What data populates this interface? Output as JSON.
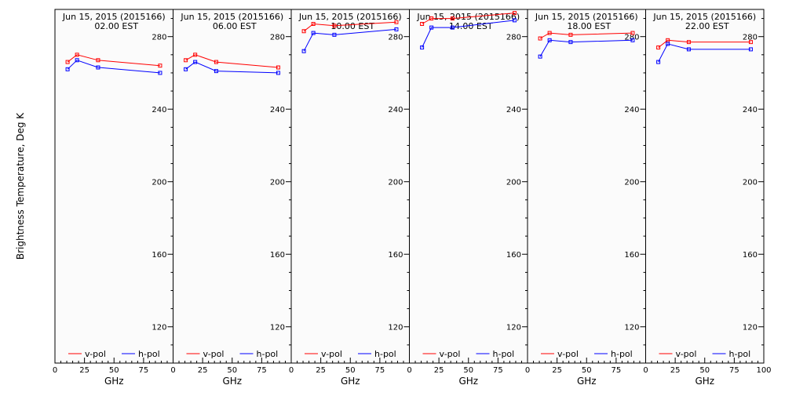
{
  "chart_data": {
    "type": "line",
    "ylabel": "Brightness Temperature, Deg K",
    "xlabel": "GHz",
    "ylim": [
      100,
      295
    ],
    "yticks": [
      120,
      160,
      200,
      240,
      280
    ],
    "xlim": [
      0,
      100
    ],
    "xticks": [
      0,
      25,
      50,
      75,
      100
    ],
    "x": [
      10.7,
      18.7,
      36.5,
      89.0
    ],
    "colors": {
      "v-pol": "#ff0000",
      "h-pol": "#0000ff"
    },
    "legend": [
      "v-pol",
      "h-pol"
    ],
    "panels": [
      {
        "title": "Jun 15, 2015 (2015166)",
        "subtitle": "02.00 EST",
        "series": [
          {
            "name": "v-pol",
            "values": [
              266,
              270,
              267,
              264
            ]
          },
          {
            "name": "h-pol",
            "values": [
              262,
              267,
              263,
              260
            ]
          }
        ]
      },
      {
        "title": "Jun 15, 2015 (2015166)",
        "subtitle": "06.00 EST",
        "series": [
          {
            "name": "v-pol",
            "values": [
              267,
              270,
              266,
              263
            ]
          },
          {
            "name": "h-pol",
            "values": [
              262,
              266,
              261,
              260
            ]
          }
        ]
      },
      {
        "title": "Jun 15, 2015 (2015166)",
        "subtitle": "10.00 EST",
        "series": [
          {
            "name": "v-pol",
            "values": [
              283,
              287,
              286,
              288
            ]
          },
          {
            "name": "h-pol",
            "values": [
              272,
              282,
              281,
              284
            ]
          }
        ]
      },
      {
        "title": "Jun 15, 2015 (2015166)",
        "subtitle": "14.00 EST",
        "series": [
          {
            "name": "v-pol",
            "values": [
              287,
              290,
              290,
              293
            ]
          },
          {
            "name": "h-pol",
            "values": [
              274,
              285,
              285,
              289
            ]
          }
        ]
      },
      {
        "title": "Jun 15, 2015 (2015166)",
        "subtitle": "18.00 EST",
        "series": [
          {
            "name": "v-pol",
            "values": [
              279,
              282,
              281,
              282
            ]
          },
          {
            "name": "h-pol",
            "values": [
              269,
              278,
              277,
              278
            ]
          }
        ]
      },
      {
        "title": "Jun 15, 2015 (2015166)",
        "subtitle": "22.00 EST",
        "series": [
          {
            "name": "v-pol",
            "values": [
              274,
              278,
              277,
              277
            ]
          },
          {
            "name": "h-pol",
            "values": [
              266,
              276,
              273,
              273
            ]
          }
        ]
      }
    ]
  }
}
